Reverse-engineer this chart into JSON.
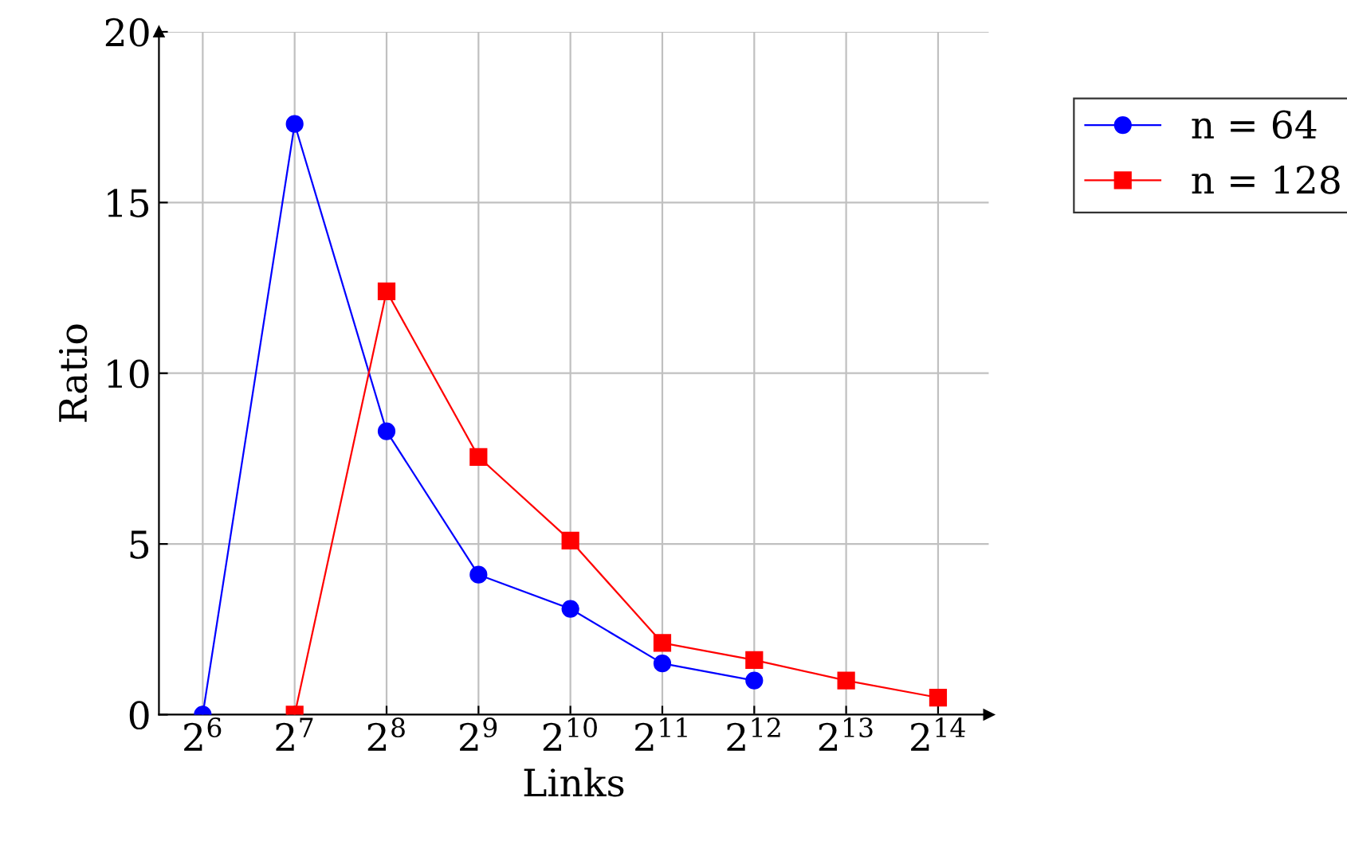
{
  "chart_data": {
    "type": "line",
    "xlabel": "Links",
    "ylabel": "Ratio",
    "log": "x",
    "x": [
      64,
      128,
      256,
      512,
      1024,
      2048,
      4096,
      8192,
      16384
    ],
    "series": [
      {
        "name": "n = 64",
        "color": "#0000ff",
        "marker": "circle",
        "values": [
          0,
          17.3,
          8.3,
          4.1,
          3.1,
          1.5,
          1.0,
          null,
          null
        ]
      },
      {
        "name": "n = 128",
        "color": "#ff0000",
        "marker": "square",
        "values": [
          null,
          0,
          12.4,
          7.55,
          5.1,
          2.1,
          1.6,
          1.0,
          0.5
        ]
      }
    ],
    "xlim": [
      46,
      24000
    ],
    "xticks": [
      {
        "value": 64,
        "label": "2$^{6}$"
      },
      {
        "value": 128,
        "label": "2$^{7}$"
      },
      {
        "value": 256,
        "label": "2$^{8}$"
      },
      {
        "value": 512,
        "label": "2$^{9}$"
      },
      {
        "value": 1024,
        "label": "2$^{10}$"
      },
      {
        "value": 2048,
        "label": "2$^{11}$"
      },
      {
        "value": 4096,
        "label": "2$^{12}$"
      },
      {
        "value": 8192,
        "label": "2$^{13}$"
      },
      {
        "value": 16384,
        "label": "2$^{14}$"
      }
    ],
    "ylim": [
      0,
      20
    ],
    "yticks": [
      0,
      5,
      10,
      15,
      20
    ],
    "grid": true,
    "legend": "top right",
    "line_style": "solid"
  }
}
